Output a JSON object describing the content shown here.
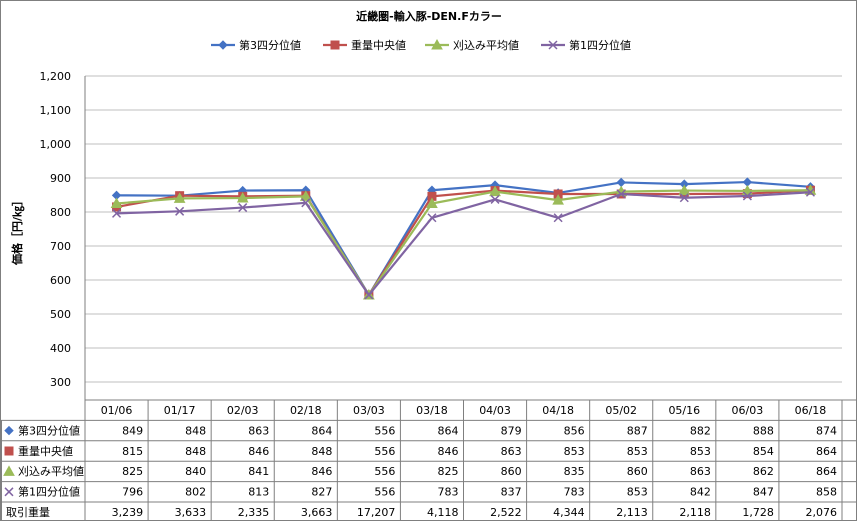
{
  "chart_data": {
    "type": "line",
    "title": "近畿圏-輸入豚-DEN.Fカラー",
    "ylabel": "価格［円/㎏］",
    "ylim": [
      300,
      1200
    ],
    "yticks": [
      "300",
      "400",
      "500",
      "600",
      "700",
      "800",
      "900",
      "1,000",
      "1,100",
      "1,200"
    ],
    "ytick_values": [
      300,
      400,
      500,
      600,
      700,
      800,
      900,
      1000,
      1100,
      1200
    ],
    "categories": [
      "01/06",
      "01/17",
      "02/03",
      "02/18",
      "03/03",
      "03/18",
      "04/03",
      "04/18",
      "05/02",
      "05/16",
      "06/03",
      "06/18"
    ],
    "legend_position": "top",
    "grid": "horizontal",
    "series": [
      {
        "name": "第3四分位値",
        "color": "#4472C4",
        "marker": "diamond",
        "values": [
          849,
          848,
          863,
          864,
          556,
          864,
          879,
          856,
          887,
          882,
          888,
          874
        ],
        "labels": [
          "849",
          "848",
          "863",
          "864",
          "556",
          "864",
          "879",
          "856",
          "887",
          "882",
          "888",
          "874"
        ]
      },
      {
        "name": "重量中央値",
        "color": "#C0504D",
        "marker": "square",
        "values": [
          815,
          848,
          846,
          848,
          556,
          846,
          863,
          853,
          853,
          853,
          854,
          864
        ],
        "labels": [
          "815",
          "848",
          "846",
          "848",
          "556",
          "846",
          "863",
          "853",
          "853",
          "853",
          "854",
          "864"
        ]
      },
      {
        "name": "刈込み平均値",
        "color": "#9BBB59",
        "marker": "triangle",
        "values": [
          825,
          840,
          841,
          846,
          556,
          825,
          860,
          835,
          860,
          863,
          862,
          864
        ],
        "labels": [
          "825",
          "840",
          "841",
          "846",
          "556",
          "825",
          "860",
          "835",
          "860",
          "863",
          "862",
          "864"
        ]
      },
      {
        "name": "第1四分位値",
        "color": "#8064A2",
        "marker": "x",
        "values": [
          796,
          802,
          813,
          827,
          556,
          783,
          837,
          783,
          853,
          842,
          847,
          858
        ],
        "labels": [
          "796",
          "802",
          "813",
          "827",
          "556",
          "783",
          "837",
          "783",
          "853",
          "842",
          "847",
          "858"
        ]
      }
    ],
    "table_extra_row": {
      "name": "取引重量",
      "values": [
        "3,239",
        "3,633",
        "2,335",
        "3,663",
        "17,207",
        "4,118",
        "2,522",
        "4,344",
        "2,113",
        "2,118",
        "1,728",
        "2,076"
      ]
    }
  }
}
